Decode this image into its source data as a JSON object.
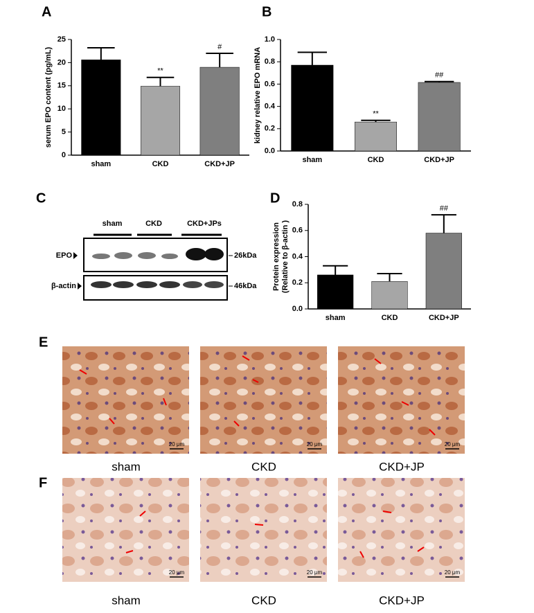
{
  "panel_labels": [
    "A",
    "B",
    "C",
    "D",
    "E",
    "F"
  ],
  "chart_data": [
    {
      "type": "bar",
      "ylabel": "serum EPO content (pg/mL)",
      "categories": [
        "sham",
        "CKD",
        "CKD+JP"
      ],
      "values": [
        20.6,
        14.9,
        19.0
      ],
      "errors": [
        2.6,
        1.9,
        3.0
      ],
      "colors": [
        "#000000",
        "#a6a6a6",
        "#7f7f7f"
      ],
      "annotations": [
        null,
        "**",
        "#"
      ],
      "ylim": [
        0,
        25
      ],
      "yticks": [
        0,
        5,
        10,
        15,
        20,
        25
      ]
    },
    {
      "type": "bar",
      "ylabel": "kidney relative EPO mRNA",
      "categories": [
        "sham",
        "CKD",
        "CKD+JP"
      ],
      "values": [
        0.77,
        0.26,
        0.615
      ],
      "errors": [
        0.115,
        0.015,
        0.008
      ],
      "colors": [
        "#000000",
        "#a6a6a6",
        "#7f7f7f"
      ],
      "annotations": [
        null,
        "**",
        "##"
      ],
      "ylim": [
        0,
        1
      ],
      "yticks": [
        {
          "value": 0,
          "label": "0.0"
        },
        0.2,
        0.4,
        0.6,
        0.8,
        {
          "value": 1,
          "label": "1.0"
        }
      ]
    },
    {
      "type": "bar",
      "ylabel": [
        "Protein expression",
        "(Relative to β-actin )"
      ],
      "categories": [
        "sham",
        "CKD",
        "CKD+JP"
      ],
      "values": [
        0.26,
        0.21,
        0.58
      ],
      "errors": [
        0.07,
        0.06,
        0.14
      ],
      "colors": [
        "#000000",
        "#a6a6a6",
        "#7f7f7f"
      ],
      "annotations": [
        null,
        null,
        "##"
      ],
      "ylim": [
        0,
        0.8
      ],
      "yticks": [
        {
          "value": 0,
          "label": "0.0"
        },
        0.2,
        0.4,
        0.6,
        0.8
      ]
    }
  ],
  "blot": {
    "groups": [
      "sham",
      "CKD",
      "CKD+JPs"
    ],
    "rows": [
      "EPO",
      "β-actin"
    ],
    "sizes": [
      "26kDa",
      "46kDa"
    ]
  },
  "micrographs": {
    "E": [
      "sham",
      "CKD",
      "CKD+JP"
    ],
    "F": [
      "sham",
      "CKD",
      "CKD+JP"
    ],
    "scale_bar": "20 μm"
  }
}
